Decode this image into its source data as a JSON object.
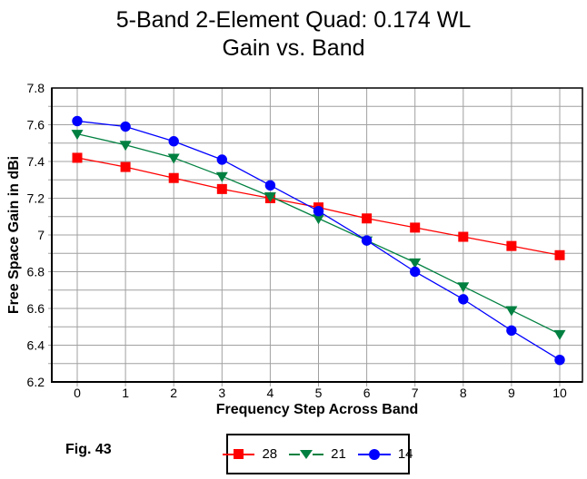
{
  "title": {
    "line1": "5-Band 2-Element Quad: 0.174 WL",
    "line2": "Gain vs. Band"
  },
  "figure_caption": "Fig. 43",
  "colors": {
    "background": "#ffffff",
    "grid": "#a0a0a0",
    "axis_border": "#000000",
    "series_28": "#ff0000",
    "series_21": "#008040",
    "series_14": "#0000ff"
  },
  "chart_data": {
    "type": "line",
    "title": "5-Band 2-Element Quad: 0.174 WL — Gain vs. Band",
    "xlabel": "Frequency Step Across Band",
    "ylabel": "Free Space Gain in dBi",
    "x": [
      0,
      1,
      2,
      3,
      4,
      5,
      6,
      7,
      8,
      9,
      10
    ],
    "x_tick_labels": [
      "0",
      "1",
      "2",
      "3",
      "4",
      "5",
      "6",
      "7",
      "8",
      "9",
      "10"
    ],
    "xlim": [
      -0.55,
      10.45
    ],
    "ylim": [
      6.2,
      7.8
    ],
    "y_tick_labels": [
      "7.8",
      "7.6",
      "7.4",
      "7.2",
      "7",
      "6.8",
      "6.6",
      "6.4",
      "6.2"
    ],
    "y_tick_step": 0.2,
    "y_minor_step": 0.1,
    "grid": true,
    "legend_position": "bottom-center",
    "series": [
      {
        "name": "28",
        "color": "#ff0000",
        "marker": "square",
        "values": [
          7.42,
          7.37,
          7.31,
          7.25,
          7.2,
          7.15,
          7.09,
          7.04,
          6.99,
          6.94,
          6.89
        ]
      },
      {
        "name": "21",
        "color": "#008040",
        "marker": "triangle-down",
        "values": [
          7.55,
          7.49,
          7.42,
          7.32,
          7.21,
          7.09,
          6.97,
          6.85,
          6.72,
          6.59,
          6.46
        ]
      },
      {
        "name": "14",
        "color": "#0000ff",
        "marker": "circle",
        "values": [
          7.62,
          7.59,
          7.51,
          7.41,
          7.27,
          7.13,
          6.97,
          6.8,
          6.65,
          6.48,
          6.32
        ]
      }
    ]
  }
}
